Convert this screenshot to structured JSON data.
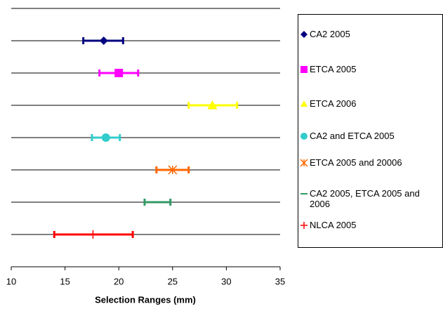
{
  "chart_data": {
    "type": "range",
    "x_label": "Selection Ranges (mm)",
    "xlim": [
      10,
      35
    ],
    "xticks": [
      10,
      15,
      20,
      25,
      30,
      35
    ],
    "ylim": [
      0,
      8
    ],
    "series": [
      {
        "name": "CA2 2005",
        "color": "#000080",
        "marker": "diamond",
        "y": 7,
        "x": 18.6,
        "low": 16.7,
        "high": 20.4
      },
      {
        "name": "ETCA 2005",
        "color": "#ff00ff",
        "marker": "square",
        "y": 6,
        "x": 20,
        "low": 18.2,
        "high": 21.8
      },
      {
        "name": "ETCA 2006",
        "color": "#ffff00",
        "marker": "triangle",
        "y": 5,
        "x": 28.7,
        "low": 26.5,
        "high": 31
      },
      {
        "name": "CA2 and ETCA 2005",
        "color": "#33cccc",
        "marker": "circle",
        "y": 4,
        "x": 18.8,
        "low": 17.5,
        "high": 20.1
      },
      {
        "name": "ETCA 2005 and 20006",
        "color": "#ff6600",
        "marker": "asterisk",
        "y": 3,
        "x": 25,
        "low": 23.5,
        "high": 26.5
      },
      {
        "name": "CA2 2005, ETCA 2005 and 2006",
        "color": "#339966",
        "marker": "dash",
        "y": 2,
        "x": 23.6,
        "low": 22.4,
        "high": 24.8
      },
      {
        "name": "NLCA 2005",
        "color": "#ff0000",
        "marker": "plus",
        "y": 1,
        "x": 17.6,
        "low": 14,
        "high": 21.3
      }
    ]
  }
}
